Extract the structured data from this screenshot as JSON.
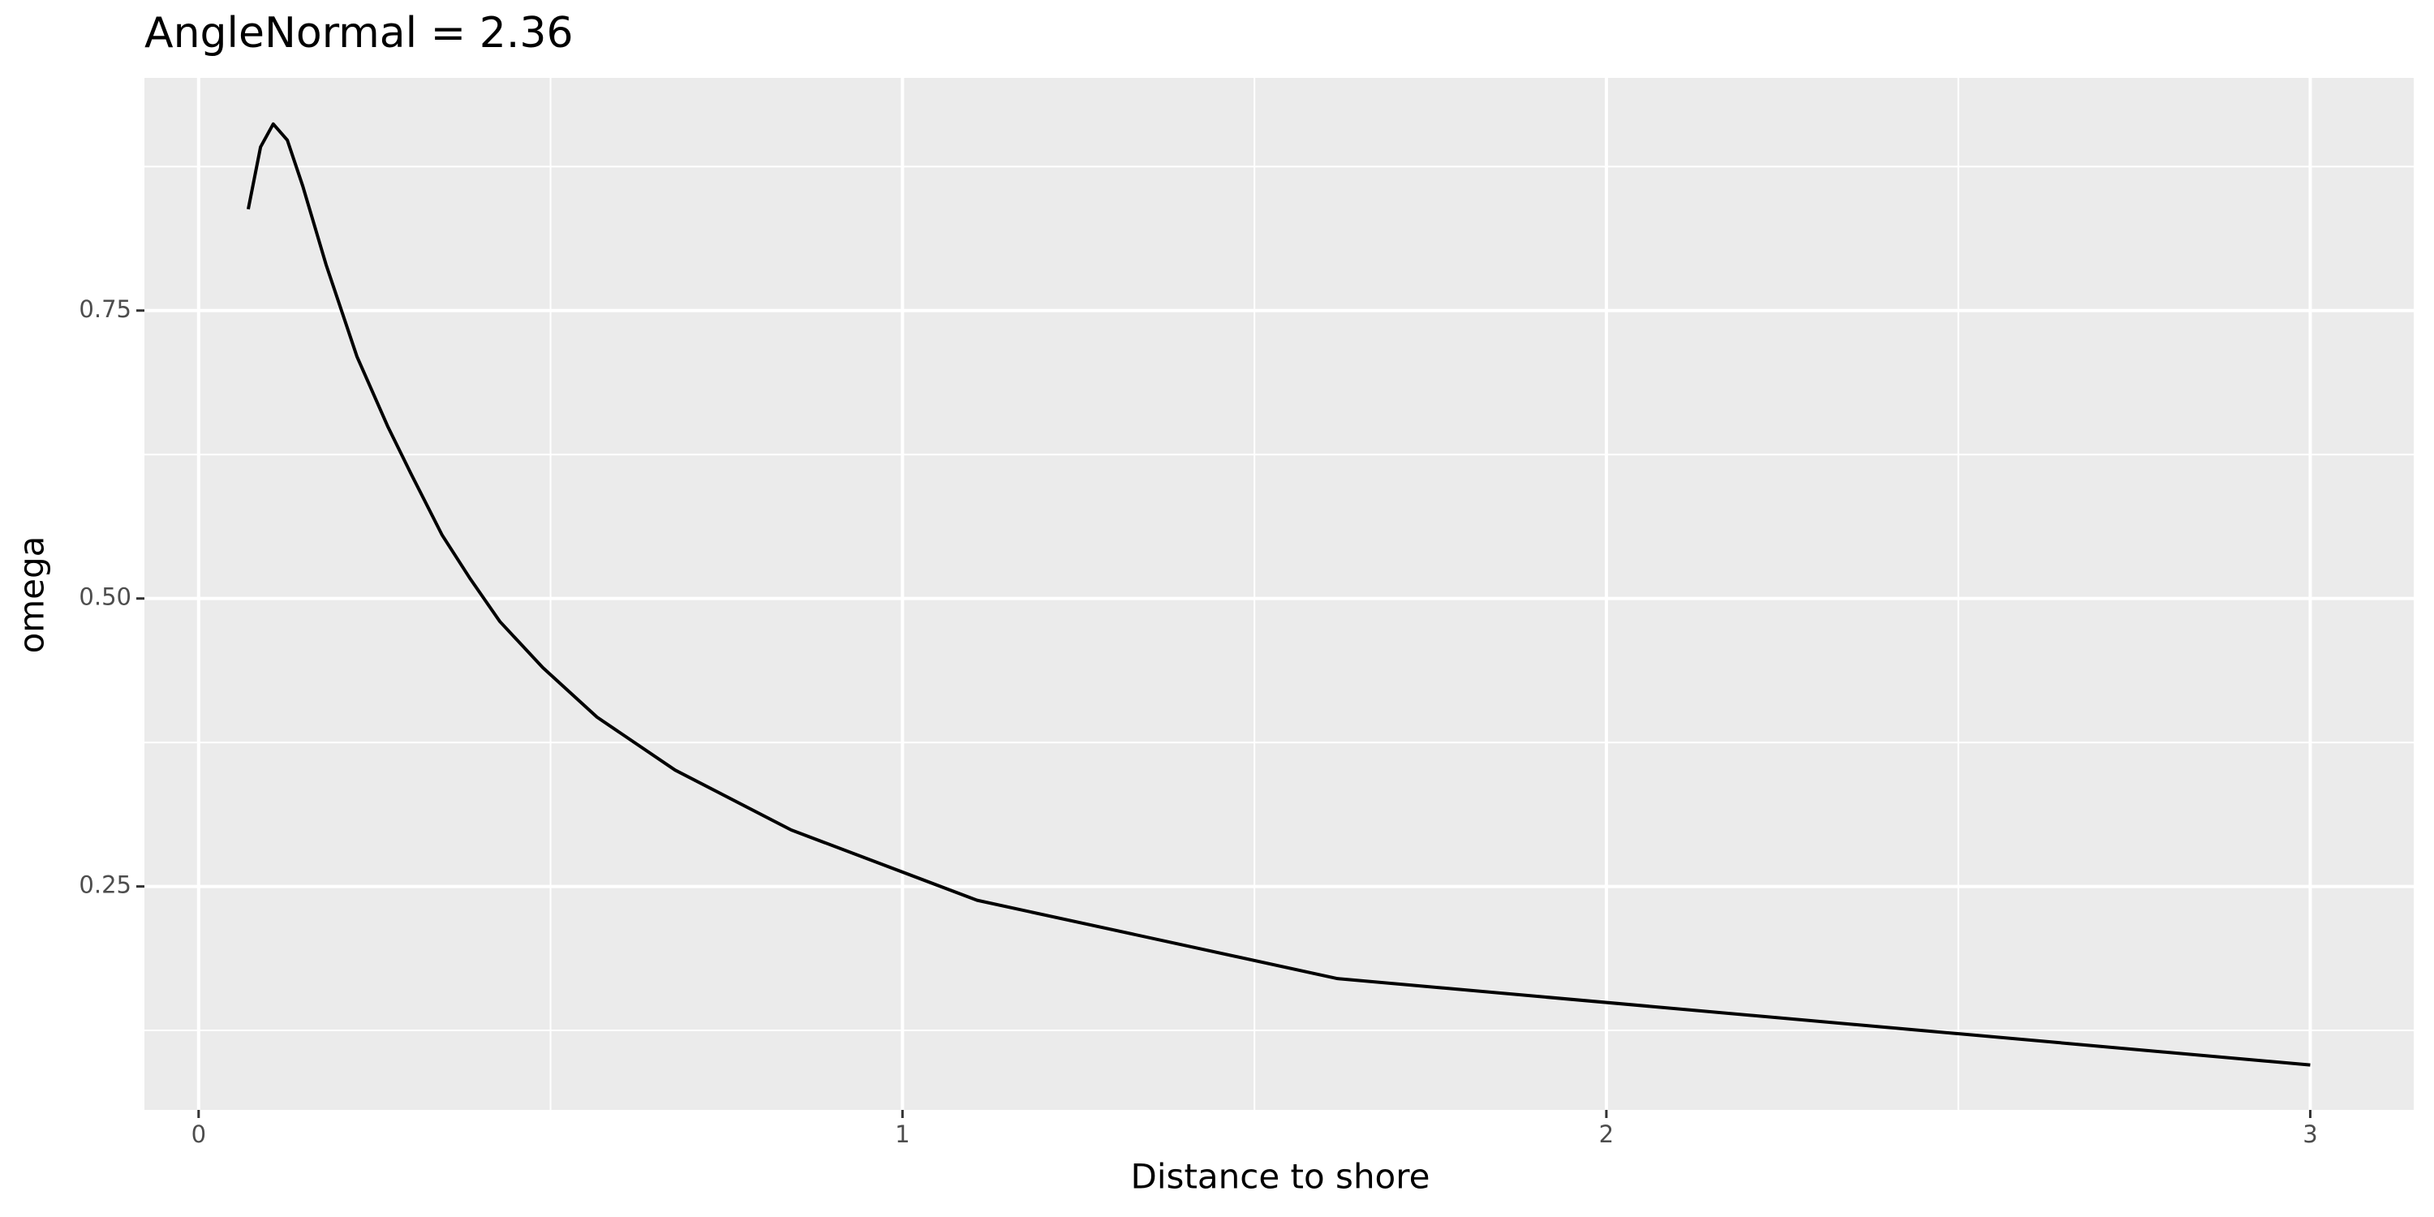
{
  "chart_data": {
    "type": "line",
    "title": "AngleNormal = 2.36",
    "xlabel": "Distance to shore",
    "ylabel": "omega",
    "x": [
      0.0705,
      0.088,
      0.106,
      0.126,
      0.148,
      0.181,
      0.225,
      0.269,
      0.302,
      0.346,
      0.386,
      0.428,
      0.489,
      0.566,
      0.677,
      0.842,
      1.106,
      1.618,
      3.0
    ],
    "series": [
      {
        "color": "#000000",
        "values": [
          0.838,
          0.892,
          0.912,
          0.898,
          0.858,
          0.79,
          0.71,
          0.649,
          0.608,
          0.555,
          0.517,
          0.48,
          0.44,
          0.397,
          0.351,
          0.299,
          0.238,
          0.17,
          0.095
        ]
      }
    ],
    "xlim": [
      -0.077,
      3.147
    ],
    "ylim": [
      0.056,
      0.952
    ],
    "xticks": [
      0,
      1,
      2,
      3
    ],
    "yticks": [
      {
        "value": 0.25,
        "label": "0.25"
      },
      {
        "value": 0.5,
        "label": "0.50"
      },
      {
        "value": 0.75,
        "label": "0.75"
      }
    ],
    "x_minor_grid": [
      0.5,
      1.5,
      2.5
    ],
    "y_minor_grid": [
      0.125,
      0.375,
      0.625,
      0.875
    ],
    "grid": true,
    "panel_color": "#ebebeb",
    "grid_color": "#ffffff"
  }
}
